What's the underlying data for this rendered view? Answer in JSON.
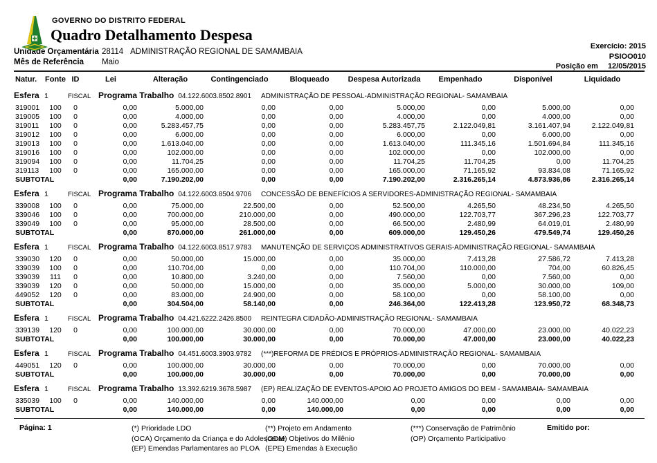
{
  "header": {
    "org": "GOVERNO DO DISTRITO FEDERAL",
    "title": "Quadro Detalhamento Despesa",
    "exercicio_label": "Exercício:",
    "exercicio_value": "2015",
    "report_code": "PSIOO010",
    "posicao_label": "Posição em",
    "posicao_value": "12/05/2015",
    "logo_icon": "gdf-coat-of-arms",
    "logo_colors": {
      "green": "#1e7e2e",
      "yellow": "#e2c81c"
    }
  },
  "info": {
    "unidade_label": "Unidade Orçamentária",
    "unidade_code": "28114",
    "unidade_name": "ADMINISTRAÇÃO REGIONAL DE SAMAMBAIA",
    "mes_label": "Mês de Referência",
    "mes_value": "Maio"
  },
  "table": {
    "columns": [
      "Natur.",
      "Fonte",
      "ID",
      "Lei",
      "Alteração",
      "Contingenciado",
      "Bloqueado",
      "Despesa Autorizada",
      "Empenhado",
      "Disponível",
      "Liquidado"
    ],
    "esfera_label": "Esfera",
    "programa_label": "Programa Trabalho",
    "subtotal_label": "SUBTOTAL",
    "sections": [
      {
        "esfera": "1",
        "tipo": "FISCAL",
        "programa_codigo": "04.122.6003.8502.8901",
        "programa_descricao": "ADMINISTRAÇÃO DE PESSOAL-ADMINISTRAÇÃO REGIONAL- SAMAMBAIA",
        "rows": [
          [
            "319001",
            "100",
            "0",
            "0,00",
            "5.000,00",
            "0,00",
            "0,00",
            "5.000,00",
            "0,00",
            "5.000,00",
            "0,00"
          ],
          [
            "319005",
            "100",
            "0",
            "0,00",
            "4.000,00",
            "0,00",
            "0,00",
            "4.000,00",
            "0,00",
            "4.000,00",
            "0,00"
          ],
          [
            "319011",
            "100",
            "0",
            "0,00",
            "5.283.457,75",
            "0,00",
            "0,00",
            "5.283.457,75",
            "2.122.049,81",
            "3.161.407,94",
            "2.122.049,81"
          ],
          [
            "319012",
            "100",
            "0",
            "0,00",
            "6.000,00",
            "0,00",
            "0,00",
            "6.000,00",
            "0,00",
            "6.000,00",
            "0,00"
          ],
          [
            "319013",
            "100",
            "0",
            "0,00",
            "1.613.040,00",
            "0,00",
            "0,00",
            "1.613.040,00",
            "111.345,16",
            "1.501.694,84",
            "111.345,16"
          ],
          [
            "319016",
            "100",
            "0",
            "0,00",
            "102.000,00",
            "0,00",
            "0,00",
            "102.000,00",
            "0,00",
            "102.000,00",
            "0,00"
          ],
          [
            "319094",
            "100",
            "0",
            "0,00",
            "11.704,25",
            "0,00",
            "0,00",
            "11.704,25",
            "11.704,25",
            "0,00",
            "11.704,25"
          ],
          [
            "319113",
            "100",
            "0",
            "0,00",
            "165.000,00",
            "0,00",
            "0,00",
            "165.000,00",
            "71.165,92",
            "93.834,08",
            "71.165,92"
          ]
        ],
        "subtotal": [
          "0,00",
          "7.190.202,00",
          "0,00",
          "0,00",
          "7.190.202,00",
          "2.316.265,14",
          "4.873.936,86",
          "2.316.265,14"
        ]
      },
      {
        "esfera": "1",
        "tipo": "FISCAL",
        "programa_codigo": "04.122.6003.8504.9706",
        "programa_descricao": "CONCESSÃO DE BENEFÍCIOS A SERVIDORES-ADMINISTRAÇÃO REGIONAL- SAMAMBAIA",
        "rows": [
          [
            "339008",
            "100",
            "0",
            "0,00",
            "75.000,00",
            "22.500,00",
            "0,00",
            "52.500,00",
            "4.265,50",
            "48.234,50",
            "4.265,50"
          ],
          [
            "339046",
            "100",
            "0",
            "0,00",
            "700.000,00",
            "210.000,00",
            "0,00",
            "490.000,00",
            "122.703,77",
            "367.296,23",
            "122.703,77"
          ],
          [
            "339049",
            "100",
            "0",
            "0,00",
            "95.000,00",
            "28.500,00",
            "0,00",
            "66.500,00",
            "2.480,99",
            "64.019,01",
            "2.480,99"
          ]
        ],
        "subtotal": [
          "0,00",
          "870.000,00",
          "261.000,00",
          "0,00",
          "609.000,00",
          "129.450,26",
          "479.549,74",
          "129.450,26"
        ]
      },
      {
        "esfera": "1",
        "tipo": "FISCAL",
        "programa_codigo": "04.122.6003.8517.9783",
        "programa_descricao": "MANUTENÇÃO DE SERVIÇOS ADMINISTRATIVOS GERAIS-ADMINISTRAÇÃO REGIONAL- SAMAMBAIA",
        "rows": [
          [
            "339030",
            "120",
            "0",
            "0,00",
            "50.000,00",
            "15.000,00",
            "0,00",
            "35.000,00",
            "7.413,28",
            "27.586,72",
            "7.413,28"
          ],
          [
            "339039",
            "100",
            "0",
            "0,00",
            "110.704,00",
            "0,00",
            "0,00",
            "110.704,00",
            "110.000,00",
            "704,00",
            "60.826,45"
          ],
          [
            "339039",
            "111",
            "0",
            "0,00",
            "10.800,00",
            "3.240,00",
            "0,00",
            "7.560,00",
            "0,00",
            "7.560,00",
            "0,00"
          ],
          [
            "339039",
            "120",
            "0",
            "0,00",
            "50.000,00",
            "15.000,00",
            "0,00",
            "35.000,00",
            "5.000,00",
            "30.000,00",
            "109,00"
          ],
          [
            "449052",
            "120",
            "0",
            "0,00",
            "83.000,00",
            "24.900,00",
            "0,00",
            "58.100,00",
            "0,00",
            "58.100,00",
            "0,00"
          ]
        ],
        "subtotal": [
          "0,00",
          "304.504,00",
          "58.140,00",
          "0,00",
          "246.364,00",
          "122.413,28",
          "123.950,72",
          "68.348,73"
        ]
      },
      {
        "esfera": "1",
        "tipo": "FISCAL",
        "programa_codigo": "04.421.6222.2426.8500",
        "programa_descricao": "REINTEGRA CIDADÃO-ADMINISTRAÇÃO REGIONAL- SAMAMBAIA",
        "rows": [
          [
            "339139",
            "120",
            "0",
            "0,00",
            "100.000,00",
            "30.000,00",
            "0,00",
            "70.000,00",
            "47.000,00",
            "23.000,00",
            "40.022,23"
          ]
        ],
        "subtotal": [
          "0,00",
          "100.000,00",
          "30.000,00",
          "0,00",
          "70.000,00",
          "47.000,00",
          "23.000,00",
          "40.022,23"
        ]
      },
      {
        "esfera": "1",
        "tipo": "FISCAL",
        "programa_codigo": "04.451.6003.3903.9782",
        "programa_descricao": "(***)REFORMA DE PRÉDIOS E PRÓPRIOS-ADMINISTRAÇÃO REGIONAL- SAMAMBAIA",
        "rows": [
          [
            "449051",
            "120",
            "0",
            "0,00",
            "100.000,00",
            "30.000,00",
            "0,00",
            "70.000,00",
            "0,00",
            "70.000,00",
            "0,00"
          ]
        ],
        "subtotal": [
          "0,00",
          "100.000,00",
          "30.000,00",
          "0,00",
          "70.000,00",
          "0,00",
          "70.000,00",
          "0,00"
        ]
      },
      {
        "esfera": "1",
        "tipo": "FISCAL",
        "programa_codigo": "13.392.6219.3678.5987",
        "programa_descricao": "(EP) REALIZAÇÃO DE EVENTOS-APOIO AO PROJETO AMIGOS DO BEM - SAMAMBAIA- SAMAMBAIA",
        "rows": [
          [
            "335039",
            "100",
            "0",
            "0,00",
            "140.000,00",
            "0,00",
            "140.000,00",
            "0,00",
            "0,00",
            "0,00",
            "0,00"
          ]
        ],
        "subtotal": [
          "0,00",
          "140.000,00",
          "0,00",
          "140.000,00",
          "0,00",
          "0,00",
          "0,00",
          "0,00"
        ]
      }
    ]
  },
  "footer": {
    "page_label": "Página:",
    "page_value": "1",
    "emitido_label": "Emitido por:",
    "legend_col1": [
      "(*) Prioridade LDO",
      "(OCA) Orçamento da Criança e do Adolescente",
      "(EP) Emendas Parlamentares ao PLOA"
    ],
    "legend_col2": [
      "(**) Projeto em Andamento",
      "(ODM) Objetivos do Milênio",
      "(EPE) Emendas à Execução"
    ],
    "legend_col3": [
      "(***) Conservação de Patrimônio",
      "(OP) Orçamento Participativo"
    ]
  }
}
